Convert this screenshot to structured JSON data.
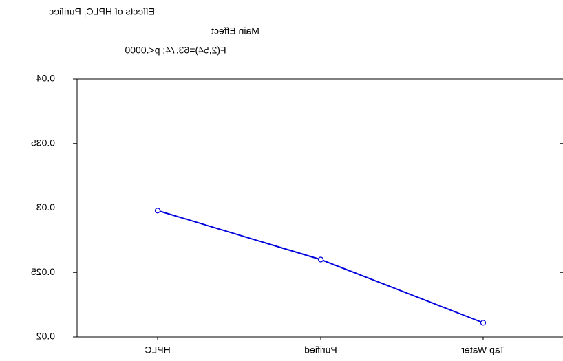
{
  "chart_data": {
    "type": "line",
    "title": "Effects of HPLC, Purifiec",
    "subtitle": "Main Effect",
    "annotation": "F(2,54)=63.74; p<.0000",
    "categories": [
      "HPLC",
      "Purified",
      "Tap Water"
    ],
    "series": [
      {
        "name": "Main Effect",
        "color": "#0000dd",
        "values": [
          0.0298,
          0.026,
          0.0211
        ]
      }
    ],
    "ylim": [
      0.02,
      0.04
    ],
    "yticks": [
      {
        "value": 0.02,
        "label": "0.02"
      },
      {
        "value": 0.025,
        "label": "0.025"
      },
      {
        "value": 0.03,
        "label": "0.03"
      },
      {
        "value": 0.035,
        "label": "0.035"
      },
      {
        "value": 0.04,
        "label": "0.04"
      }
    ],
    "grid": false
  }
}
